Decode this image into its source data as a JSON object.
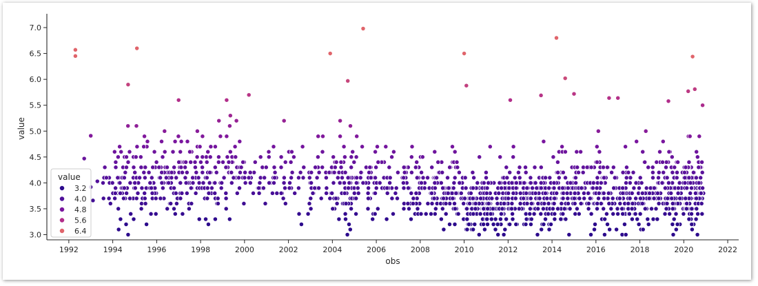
{
  "chart_data": {
    "type": "scatter",
    "xlabel": "obs",
    "ylabel": "value",
    "xlim": [
      1991.0,
      2022.5
    ],
    "ylim": [
      2.9,
      7.2
    ],
    "x_ticks": [
      "1992",
      "1994",
      "1996",
      "1998",
      "2000",
      "2002",
      "2004",
      "2006",
      "2008",
      "2010",
      "2012",
      "2014",
      "2016",
      "2018",
      "2020",
      "2022"
    ],
    "y_ticks": [
      "3.0",
      "3.5",
      "4.0",
      "4.5",
      "5.0",
      "5.5",
      "6.0",
      "6.5",
      "7.0"
    ],
    "hue": "value",
    "colormap": "magma-like (dark purple to salmon)",
    "colors": {
      "low": "#2c0a8c",
      "mid": "#7a169e",
      "high": "#e0646b"
    },
    "legend": {
      "title": "value",
      "placement": "lower-left",
      "entries": [
        {
          "label": "3.2",
          "color": "#2c0a8c"
        },
        {
          "label": "4.0",
          "color": "#50109a"
        },
        {
          "label": "4.8",
          "color": "#7a169e"
        },
        {
          "label": "5.6",
          "color": "#b22e8a"
        },
        {
          "label": "6.4",
          "color": "#e0646b"
        }
      ]
    },
    "grid": false,
    "spines": "left and bottom only",
    "highlights": [
      {
        "x": 1992.3,
        "y": 6.57
      },
      {
        "x": 1992.3,
        "y": 6.45
      },
      {
        "x": 1995.1,
        "y": 6.6
      },
      {
        "x": 2005.4,
        "y": 6.98
      },
      {
        "x": 2003.9,
        "y": 6.5
      },
      {
        "x": 2010.0,
        "y": 6.5
      },
      {
        "x": 2014.2,
        "y": 6.8
      },
      {
        "x": 2020.4,
        "y": 6.44
      },
      {
        "x": 1994.7,
        "y": 5.9
      },
      {
        "x": 2004.7,
        "y": 5.97
      },
      {
        "x": 2014.6,
        "y": 6.02
      },
      {
        "x": 2010.1,
        "y": 5.88
      },
      {
        "x": 2020.2,
        "y": 5.77
      },
      {
        "x": 2020.5,
        "y": 5.81
      },
      {
        "x": 2015.0,
        "y": 5.72
      },
      {
        "x": 2016.6,
        "y": 5.64
      },
      {
        "x": 2017.0,
        "y": 5.64
      },
      {
        "x": 2013.5,
        "y": 5.69
      },
      {
        "x": 2000.2,
        "y": 5.7
      },
      {
        "x": 1997.0,
        "y": 5.6
      },
      {
        "x": 2012.1,
        "y": 5.6
      },
      {
        "x": 2019.3,
        "y": 5.58
      },
      {
        "x": 1993.0,
        "y": 4.91
      },
      {
        "x": 1992.7,
        "y": 4.47
      },
      {
        "x": 1993.1,
        "y": 3.66
      },
      {
        "x": 1993.3,
        "y": 4.03
      },
      {
        "x": 1993.0,
        "y": 3.92
      }
    ],
    "segments": [
      {
        "x": [
          1993.5,
          1994.0
        ],
        "mean": 4.0,
        "spread": 0.35,
        "n": 10
      },
      {
        "x": [
          1994.0,
          1995.0
        ],
        "mean": 4.0,
        "spread": 0.55,
        "n": 60
      },
      {
        "x": [
          1995.0,
          1996.0
        ],
        "mean": 4.0,
        "spread": 0.45,
        "n": 55
      },
      {
        "x": [
          1996.0,
          1997.0
        ],
        "mean": 4.0,
        "spread": 0.4,
        "n": 50
      },
      {
        "x": [
          1997.0,
          1998.0
        ],
        "mean": 4.05,
        "spread": 0.45,
        "n": 55
      },
      {
        "x": [
          1998.0,
          1999.0
        ],
        "mean": 4.05,
        "spread": 0.45,
        "n": 50
      },
      {
        "x": [
          1999.0,
          2000.0
        ],
        "mean": 4.1,
        "spread": 0.45,
        "n": 45
      },
      {
        "x": [
          2000.0,
          2001.0
        ],
        "mean": 4.1,
        "spread": 0.4,
        "n": 25
      },
      {
        "x": [
          2001.0,
          2002.0
        ],
        "mean": 4.1,
        "spread": 0.4,
        "n": 25
      },
      {
        "x": [
          2002.0,
          2003.0
        ],
        "mean": 3.95,
        "spread": 0.35,
        "n": 25
      },
      {
        "x": [
          2003.0,
          2004.0
        ],
        "mean": 3.95,
        "spread": 0.35,
        "n": 35
      },
      {
        "x": [
          2004.0,
          2005.0
        ],
        "mean": 3.95,
        "spread": 0.4,
        "n": 70
      },
      {
        "x": [
          2005.0,
          2006.0
        ],
        "mean": 3.95,
        "spread": 0.4,
        "n": 45
      },
      {
        "x": [
          2006.0,
          2007.0
        ],
        "mean": 3.85,
        "spread": 0.35,
        "n": 35
      },
      {
        "x": [
          2007.0,
          2008.0
        ],
        "mean": 3.85,
        "spread": 0.35,
        "n": 45
      },
      {
        "x": [
          2008.0,
          2009.0
        ],
        "mean": 3.85,
        "spread": 0.35,
        "n": 50
      },
      {
        "x": [
          2009.0,
          2010.0
        ],
        "mean": 3.75,
        "spread": 0.35,
        "n": 70
      },
      {
        "x": [
          2010.0,
          2011.0
        ],
        "mean": 3.55,
        "spread": 0.3,
        "n": 110
      },
      {
        "x": [
          2011.0,
          2012.0
        ],
        "mean": 3.6,
        "spread": 0.35,
        "n": 90
      },
      {
        "x": [
          2012.0,
          2013.0
        ],
        "mean": 3.6,
        "spread": 0.35,
        "n": 85
      },
      {
        "x": [
          2013.0,
          2014.0
        ],
        "mean": 3.65,
        "spread": 0.35,
        "n": 85
      },
      {
        "x": [
          2014.0,
          2015.0
        ],
        "mean": 3.75,
        "spread": 0.4,
        "n": 90
      },
      {
        "x": [
          2015.0,
          2016.0
        ],
        "mean": 3.8,
        "spread": 0.4,
        "n": 70
      },
      {
        "x": [
          2016.0,
          2017.0
        ],
        "mean": 3.8,
        "spread": 0.4,
        "n": 70
      },
      {
        "x": [
          2017.0,
          2018.0
        ],
        "mean": 3.7,
        "spread": 0.35,
        "n": 70
      },
      {
        "x": [
          2018.0,
          2019.0
        ],
        "mean": 3.7,
        "spread": 0.35,
        "n": 75
      },
      {
        "x": [
          2019.0,
          2020.0
        ],
        "mean": 3.75,
        "spread": 0.4,
        "n": 90
      },
      {
        "x": [
          2020.0,
          2020.9
        ],
        "mean": 3.85,
        "spread": 0.45,
        "n": 110
      }
    ]
  }
}
